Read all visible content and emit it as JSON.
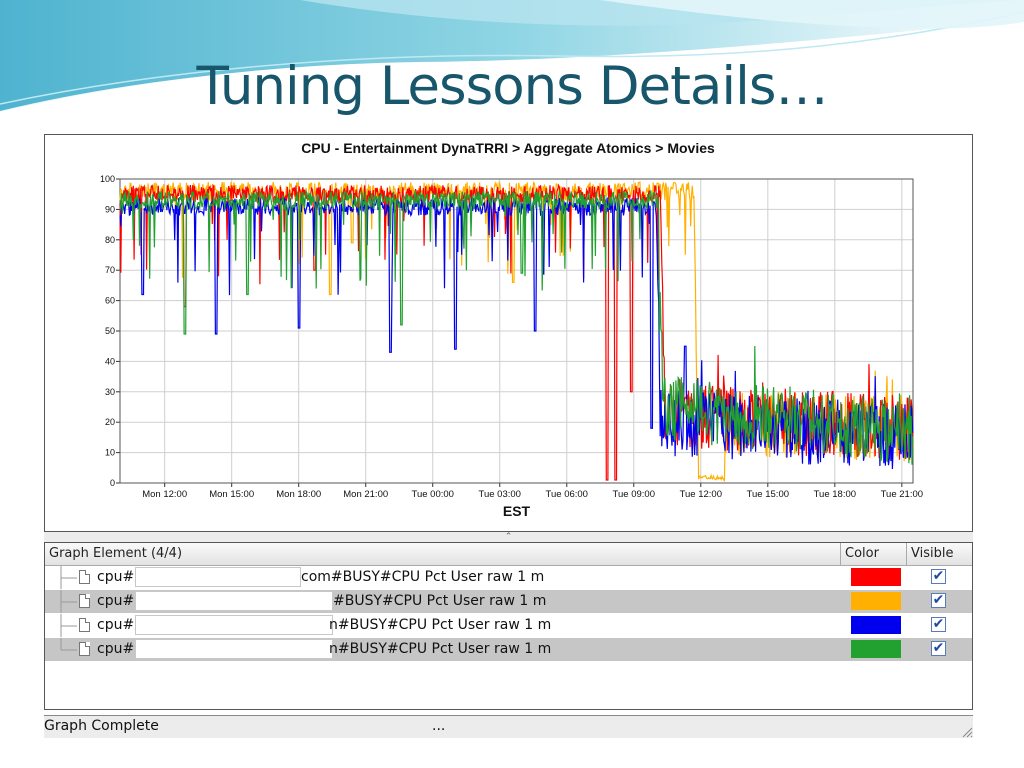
{
  "slide": {
    "title": "Tuning Lessons Details…"
  },
  "colors": {
    "title": "#17566b",
    "banner": "#7cc8dc",
    "red": "#ff0000",
    "orange": "#ffb000",
    "blue": "#0000ee",
    "green": "#22a030"
  },
  "graph": {
    "splitter_glyph": "⌃"
  },
  "chart_data": {
    "type": "line",
    "title": "CPU - Entertainment DynaTRRI > Aggregate Atomics > Movies",
    "xlabel": "EST",
    "ylabel": "",
    "ylim": [
      0,
      100
    ],
    "xlim_hours": [
      10,
      45.5
    ],
    "y_ticks": [
      "0",
      "10",
      "20",
      "30",
      "40",
      "50",
      "60",
      "70",
      "80",
      "90",
      "100"
    ],
    "x_ticks": [
      "Mon 12:00",
      "Mon 15:00",
      "Mon 18:00",
      "Mon 21:00",
      "Tue 00:00",
      "Tue 03:00",
      "Tue 06:00",
      "Tue 09:00",
      "Tue 12:00",
      "Tue 15:00",
      "Tue 18:00",
      "Tue 21:00"
    ],
    "x_tick_hours": [
      12,
      15,
      18,
      21,
      24,
      27,
      30,
      33,
      36,
      39,
      42,
      45
    ],
    "grid": true,
    "legend": "none",
    "series": [
      {
        "color": "#ff0000",
        "values_note_hours": [
          10,
          45.5
        ],
        "levels": [
          [
            10,
            95
          ],
          [
            34.2,
            95
          ],
          [
            34.4,
            22
          ],
          [
            45.5,
            18
          ]
        ],
        "dips": [
          [
            12.9,
            58
          ],
          [
            18.7,
            70
          ],
          [
            31.8,
            1
          ],
          [
            32.2,
            1
          ],
          [
            32.9,
            30
          ],
          [
            35.3,
            28
          ]
        ]
      },
      {
        "color": "#ffb000",
        "levels": [
          [
            10,
            96
          ],
          [
            35.7,
            96
          ],
          [
            35.9,
            1
          ],
          [
            37.0,
            1
          ],
          [
            37.2,
            20
          ],
          [
            45.5,
            18
          ]
        ],
        "dips": [
          [
            19.4,
            62
          ],
          [
            20.4,
            79
          ],
          [
            27.6,
            66
          ]
        ]
      },
      {
        "color": "#0000ee",
        "levels": [
          [
            10,
            91
          ],
          [
            34.0,
            91
          ],
          [
            34.2,
            20
          ],
          [
            45.5,
            15
          ]
        ],
        "dips": [
          [
            11.0,
            62
          ],
          [
            14.3,
            49
          ],
          [
            18.0,
            51
          ],
          [
            22.1,
            43
          ],
          [
            25.0,
            44
          ],
          [
            28.6,
            50
          ],
          [
            33.8,
            18
          ],
          [
            35.3,
            45
          ]
        ]
      },
      {
        "color": "#22a030",
        "levels": [
          [
            10,
            93
          ],
          [
            34.1,
            93
          ],
          [
            34.3,
            25
          ],
          [
            45.5,
            17
          ]
        ],
        "dips": [
          [
            12.9,
            49
          ],
          [
            15.7,
            62
          ],
          [
            22.6,
            52
          ],
          [
            28.0,
            69
          ]
        ]
      }
    ]
  },
  "table": {
    "header": {
      "element": "Graph Element (4/4)",
      "color": "Color",
      "visible": "Visible"
    },
    "rows": [
      {
        "prefix": "cpu#",
        "suffix": "com#BUSY#CPU Pct User raw 1 m",
        "color": "#ff0000",
        "check": "✔"
      },
      {
        "prefix": "cpu#",
        "suffix": "#BUSY#CPU Pct User raw 1 m",
        "color": "#ffb000",
        "check": "✔"
      },
      {
        "prefix": "cpu#",
        "suffix": "n#BUSY#CPU Pct User raw 1 m",
        "color": "#0000ee",
        "check": "✔"
      },
      {
        "prefix": "cpu#",
        "suffix": "n#BUSY#CPU Pct User raw 1 m",
        "color": "#22a030",
        "check": "✔"
      }
    ]
  },
  "status": {
    "text": "Graph Complete",
    "dots": "..."
  }
}
